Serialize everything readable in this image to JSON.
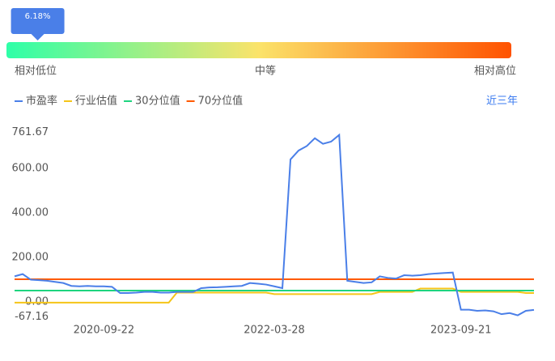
{
  "percentile": {
    "value": 6.18,
    "label": "6.18%"
  },
  "scale_labels": [
    "相对低位",
    "中等",
    "相对高位"
  ],
  "range_link": "近三年",
  "chart_data": {
    "type": "line",
    "categories": [
      null,
      null,
      null,
      null,
      null,
      null,
      null,
      null,
      null,
      null,
      null,
      "2020-09-22",
      null,
      null,
      null,
      null,
      null,
      null,
      null,
      null,
      null,
      null,
      null,
      null,
      null,
      null,
      null,
      null,
      null,
      null,
      null,
      null,
      "2022-03-28",
      null,
      null,
      null,
      null,
      null,
      null,
      null,
      null,
      null,
      null,
      null,
      null,
      null,
      null,
      null,
      null,
      null,
      null,
      null,
      null,
      null,
      null,
      "2023-09-21",
      null,
      null,
      null,
      null,
      null,
      null,
      null,
      null,
      null
    ],
    "series": [
      {
        "name": "市盈率",
        "color": "#4a7fe8",
        "values": [
          115,
          125,
          100,
          98,
          95,
          90,
          85,
          72,
          70,
          72,
          70,
          70,
          68,
          40,
          40,
          42,
          45,
          45,
          42,
          42,
          45,
          45,
          45,
          62,
          65,
          66,
          68,
          70,
          72,
          85,
          82,
          78,
          70,
          62,
          640,
          680,
          700,
          735,
          710,
          720,
          750,
          95,
          90,
          85,
          88,
          115,
          108,
          105,
          120,
          118,
          120,
          125,
          128,
          130,
          132,
          -35,
          -35,
          -40,
          -38,
          -42,
          -55,
          -50,
          -60,
          -40,
          -36
        ]
      },
      {
        "name": "行业估值",
        "color": "#f5c518",
        "values": [
          -3,
          -3,
          -3,
          -3,
          -3,
          -3,
          -3,
          -3,
          -3,
          -3,
          -3,
          -3,
          -3,
          -3,
          -3,
          -3,
          -3,
          -3,
          -3,
          -3,
          42,
          42,
          42,
          42,
          42,
          42,
          42,
          42,
          42,
          42,
          42,
          42,
          35,
          35,
          35,
          35,
          35,
          35,
          35,
          35,
          35,
          35,
          35,
          35,
          35,
          45,
          45,
          45,
          45,
          45,
          60,
          60,
          60,
          60,
          60,
          45,
          45,
          45,
          45,
          45,
          45,
          45,
          45,
          40,
          40
        ]
      },
      {
        "name": "30分位值",
        "color": "#1ed47f",
        "values": [
          51,
          51,
          51,
          51,
          51,
          51,
          51,
          51,
          51,
          51,
          51,
          51,
          51,
          51,
          51,
          51,
          51,
          51,
          51,
          51,
          51,
          51,
          51,
          51,
          51,
          51,
          51,
          51,
          51,
          51,
          51,
          51,
          51,
          51,
          51,
          51,
          51,
          51,
          51,
          51,
          51,
          51,
          51,
          51,
          51,
          51,
          51,
          51,
          51,
          51,
          51,
          51,
          51,
          51,
          51,
          51,
          51,
          51,
          51,
          51,
          51,
          51,
          51,
          51,
          51
        ]
      },
      {
        "name": "70分位值",
        "color": "#ff5a00",
        "values": [
          102,
          102,
          102,
          102,
          102,
          102,
          102,
          102,
          102,
          102,
          102,
          102,
          102,
          102,
          102,
          102,
          102,
          102,
          102,
          102,
          102,
          102,
          102,
          102,
          102,
          102,
          102,
          102,
          102,
          102,
          102,
          102,
          102,
          102,
          102,
          102,
          102,
          102,
          102,
          102,
          102,
          102,
          102,
          102,
          102,
          102,
          102,
          102,
          102,
          102,
          102,
          102,
          102,
          102,
          102,
          102,
          102,
          102,
          102,
          102,
          102,
          102,
          102,
          102,
          102
        ]
      }
    ],
    "ylim": [
      -67.16,
      761.67
    ],
    "yticks": [
      {
        "value": -67.16,
        "label": "-67.16"
      },
      {
        "value": 0,
        "label": "0.00"
      },
      {
        "value": 200,
        "label": "200.00"
      },
      {
        "value": 400,
        "label": "400.00"
      },
      {
        "value": 600,
        "label": "600.00"
      },
      {
        "value": 761.67,
        "label": "761.67"
      }
    ]
  }
}
